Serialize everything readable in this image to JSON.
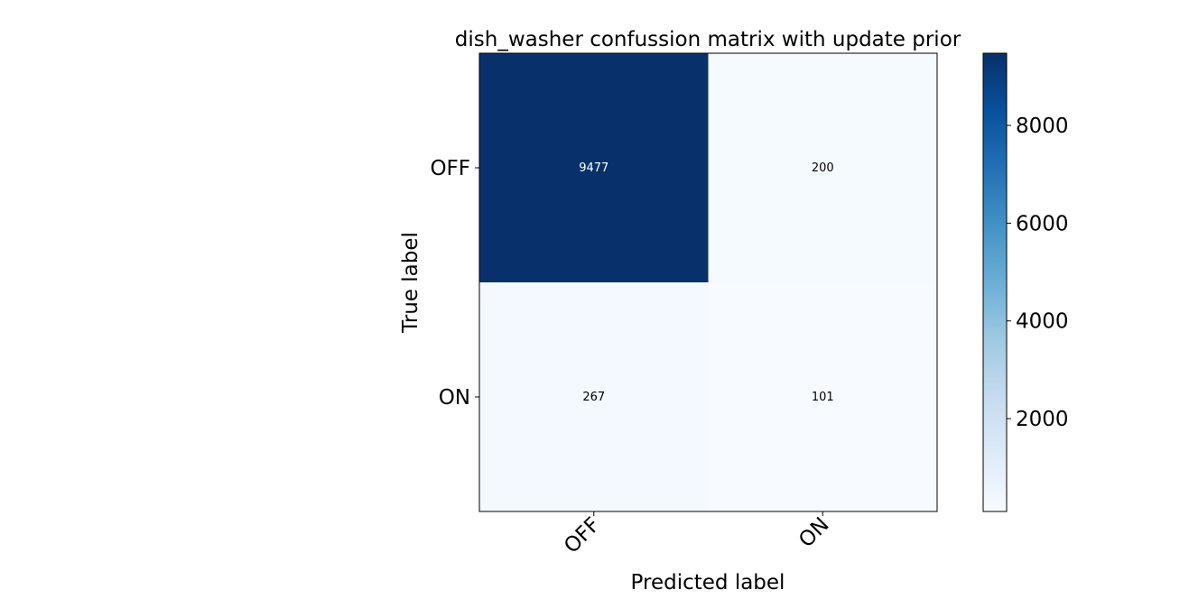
{
  "chart_data": {
    "type": "heatmap",
    "title": "dish_washer confussion matrix with update prior",
    "xlabel": "Predicted label",
    "ylabel": "True label",
    "x_categories": [
      "OFF",
      "ON"
    ],
    "y_categories": [
      "OFF",
      "ON"
    ],
    "values": [
      [
        9477,
        200
      ],
      [
        267,
        101
      ]
    ],
    "colormap": "Blues",
    "colorbar": {
      "min": 101,
      "max": 9477,
      "ticks": [
        2000,
        4000,
        6000,
        8000
      ],
      "tick_labels": [
        "2000",
        "4000",
        "6000",
        "8000"
      ]
    },
    "colors": {
      "high": "#08306b",
      "low": "#f7fbff",
      "text_dark": "#000000",
      "text_light": "#ffffff"
    }
  }
}
